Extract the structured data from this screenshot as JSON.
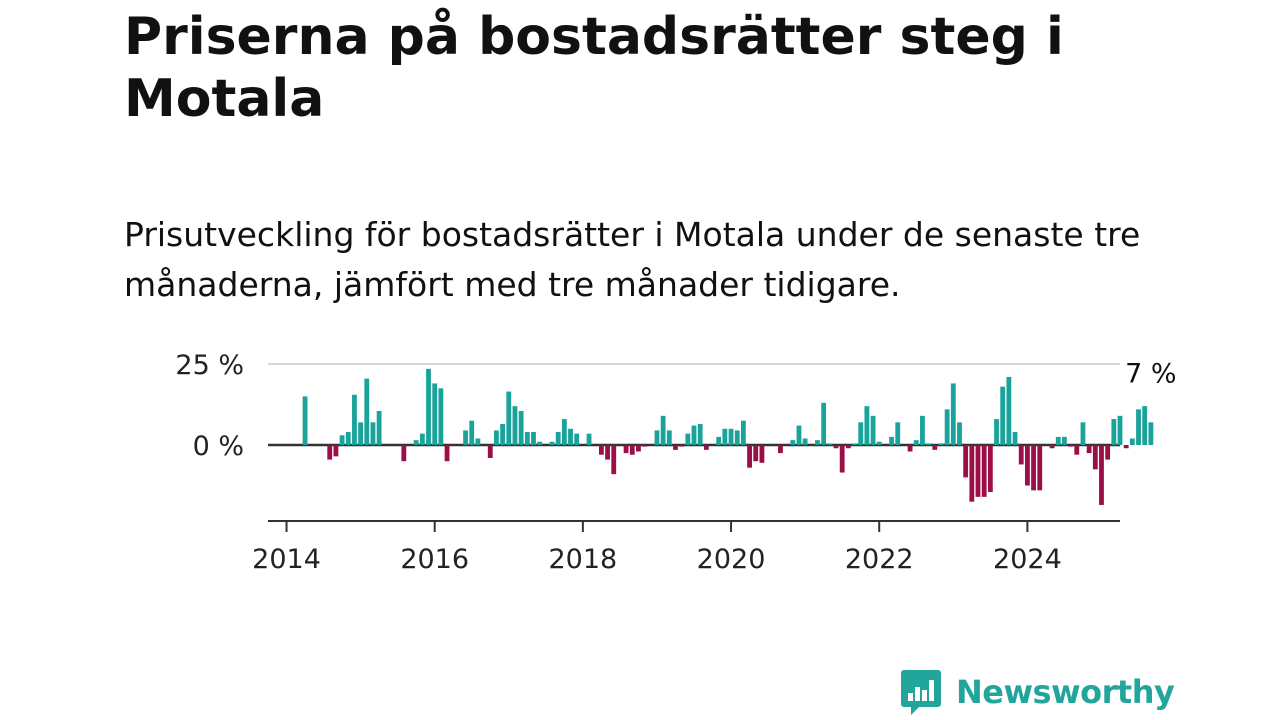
{
  "header": {
    "title": "Priserna på bostadsrätter steg i Motala",
    "subtitle": "Prisutveckling för bostadsrätter i Motala under de senaste tre månaderna, jämfört med tre månader tidigare."
  },
  "brand": {
    "name": "Newsworthy",
    "icon": "newsworthy-logo-icon",
    "color": "#22a69b"
  },
  "chart_data": {
    "type": "bar",
    "x_unit": "month",
    "x_start": "2014-04",
    "values": [
      15,
      0,
      0,
      0,
      -4.5,
      -3.5,
      3,
      4,
      15.5,
      7,
      20.5,
      7,
      10.5,
      0,
      0,
      0,
      -5,
      0,
      1.5,
      3.5,
      23.5,
      19,
      17.5,
      -5,
      0,
      0,
      4.5,
      7.5,
      2,
      0,
      -4,
      4.5,
      6.5,
      16.5,
      12,
      10.5,
      4,
      4,
      1,
      0,
      1,
      4,
      8,
      5,
      3.5,
      0,
      3.5,
      0,
      -3,
      -4.5,
      -9,
      0,
      -2.5,
      -3,
      -2,
      -0.5,
      0,
      4.5,
      9,
      4.5,
      -1.5,
      -0.5,
      3.5,
      6,
      6.5,
      -1.5,
      0,
      2.5,
      5,
      5,
      4.5,
      7.5,
      -7,
      -5,
      -5.5,
      0,
      0,
      -2.5,
      0,
      1.5,
      6,
      2,
      0,
      1.5,
      13,
      0.5,
      -1,
      -8.5,
      -1,
      0.5,
      7,
      12,
      9,
      1,
      0,
      2.5,
      7,
      0,
      -2,
      1.5,
      9,
      0.5,
      -1.5,
      0.5,
      11,
      19,
      7,
      -10,
      -17.5,
      -16,
      -16,
      -14.5,
      8,
      18,
      21,
      4,
      -6,
      -12.5,
      -14,
      -14,
      0,
      -1,
      2.5,
      2.5,
      -0.5,
      -3,
      7,
      -2.5,
      -7.5,
      -18.5,
      -4.5,
      8,
      9,
      -1,
      2,
      11,
      12,
      7
    ],
    "positive_color": "#1aa39a",
    "negative_color": "#9b0e48",
    "y_ticks": [
      {
        "value": 25,
        "label": "25 %"
      },
      {
        "value": 0,
        "label": "0 %"
      }
    ],
    "x_ticks": [
      {
        "value": "2014",
        "label": "2014"
      },
      {
        "value": "2016",
        "label": "2016"
      },
      {
        "value": "2018",
        "label": "2018"
      },
      {
        "value": "2020",
        "label": "2020"
      },
      {
        "value": "2022",
        "label": "2022"
      },
      {
        "value": "2024",
        "label": "2024"
      }
    ],
    "ylim": [
      -25,
      25
    ],
    "xlim": [
      "2013-10",
      "2025-04"
    ],
    "last_value_label": "7 %"
  }
}
